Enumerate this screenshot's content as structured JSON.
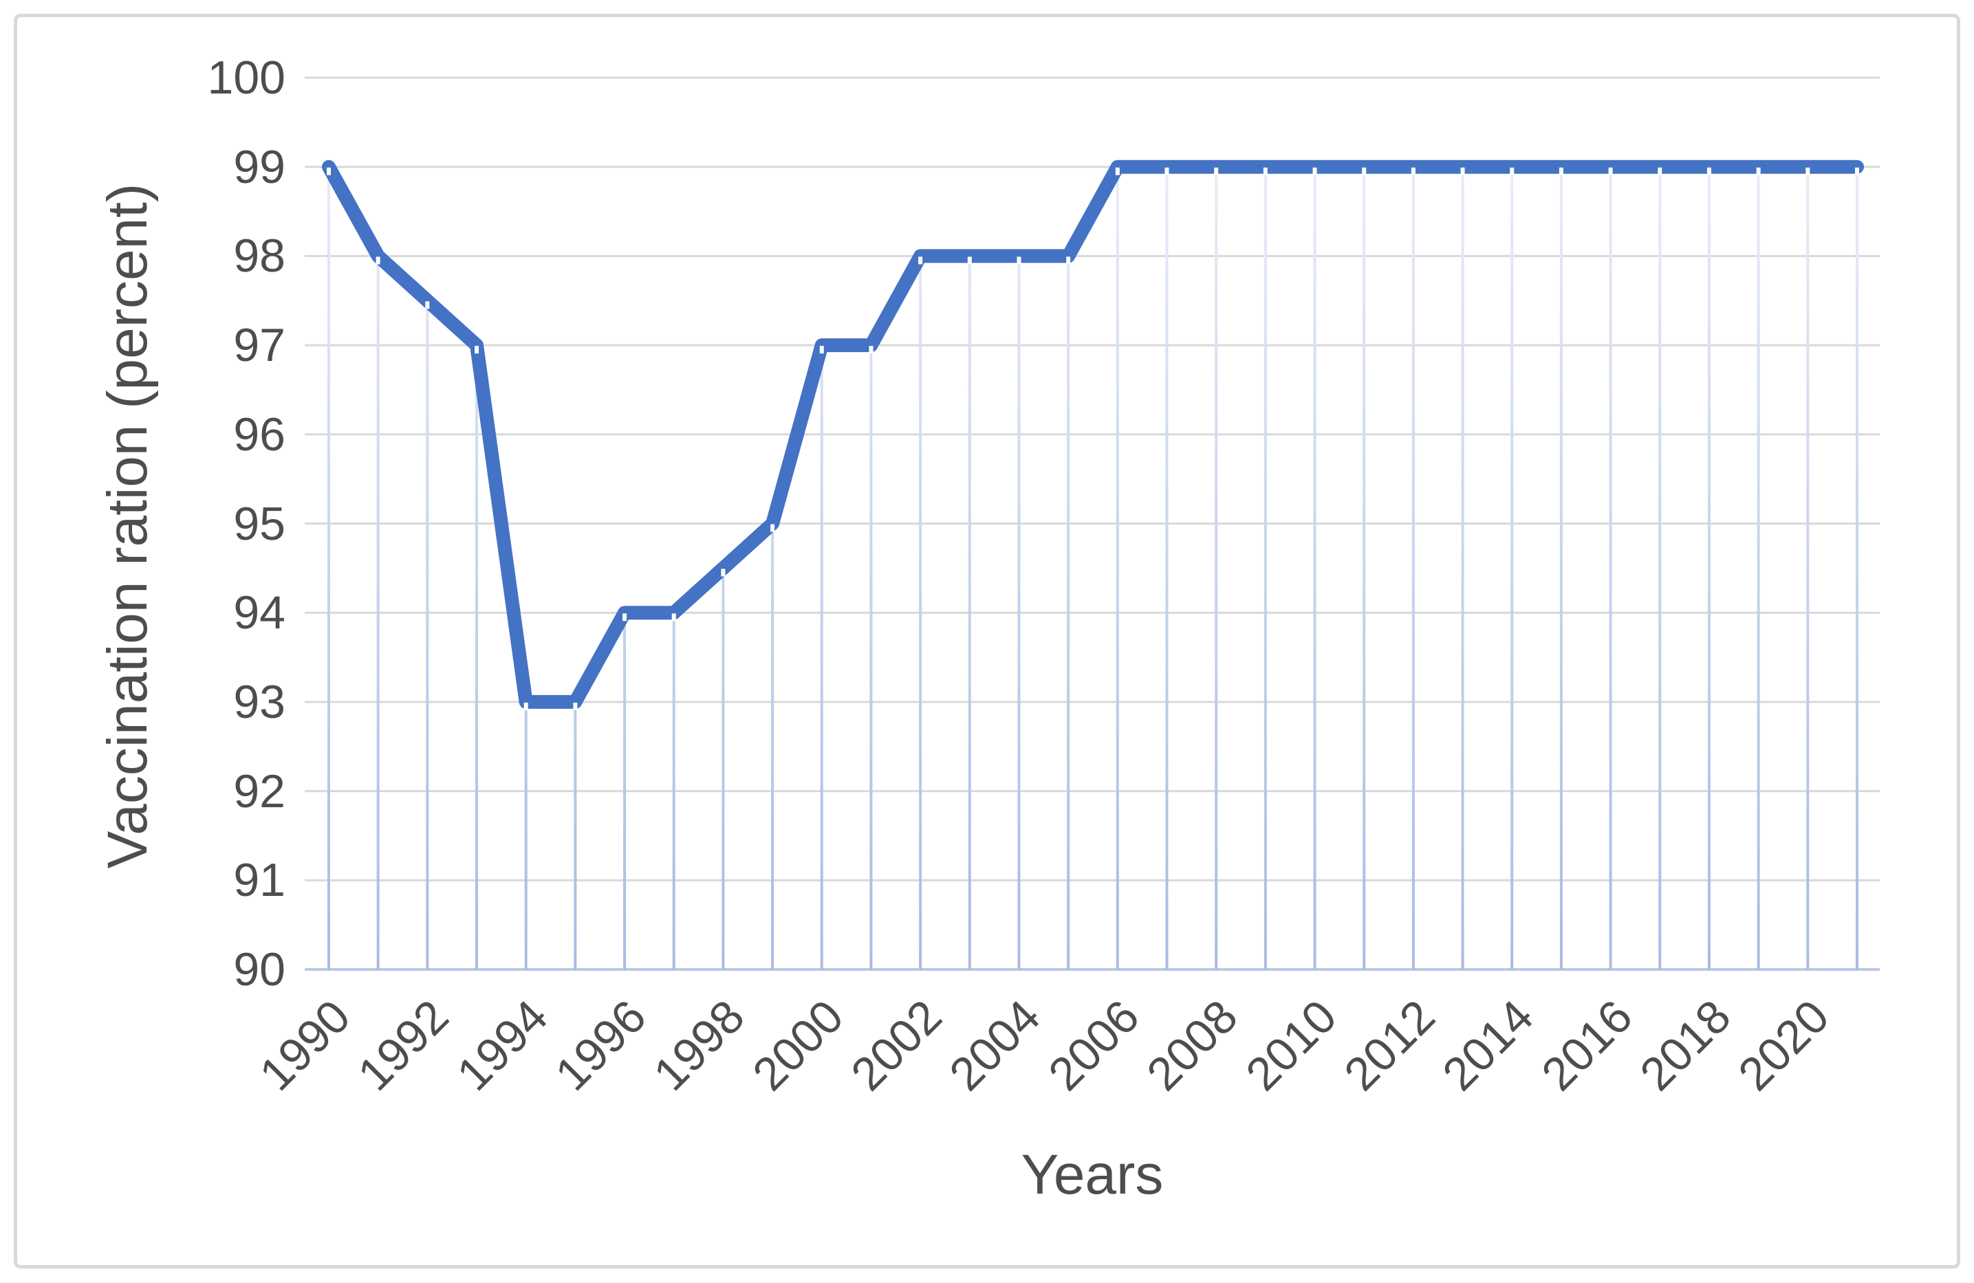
{
  "chart_data": {
    "type": "line",
    "title": "",
    "xlabel": "Years",
    "ylabel": "Vaccination ration (percent)",
    "x": [
      1990,
      1991,
      1992,
      1993,
      1994,
      1995,
      1996,
      1997,
      1998,
      1999,
      2000,
      2001,
      2002,
      2003,
      2004,
      2005,
      2006,
      2007,
      2008,
      2009,
      2010,
      2011,
      2012,
      2013,
      2014,
      2015,
      2016,
      2017,
      2018,
      2019,
      2020,
      2021
    ],
    "values": [
      99,
      98,
      97.5,
      97,
      93,
      93,
      94,
      94,
      94.5,
      95,
      97,
      97,
      98,
      98,
      98,
      98,
      99,
      99,
      99,
      99,
      99,
      99,
      99,
      99,
      99,
      99,
      99,
      99,
      99,
      99,
      99,
      99
    ],
    "ylim": [
      90,
      100
    ],
    "ytick_labels": [
      "100",
      "99",
      "98",
      "97",
      "96",
      "95",
      "94",
      "93",
      "92",
      "91",
      "90"
    ],
    "xtick_labels": [
      "1990",
      "1992",
      "1994",
      "1996",
      "1998",
      "2000",
      "2002",
      "2004",
      "2006",
      "2008",
      "2010",
      "2012",
      "2014",
      "2016",
      "2018",
      "2020"
    ],
    "grid": "horizontal-major",
    "drop_lines": true,
    "legend": "none",
    "colors": {
      "line": "#4472C4",
      "gridline": "#D9D9D9",
      "axis_line": "#B9C8E8",
      "drop_line_top": "#E7ECF7",
      "drop_line_bottom": "#A8BCE2",
      "label": "#4D4D4D",
      "frame_border": "#D9D9D9",
      "background": "#FFFFFF"
    }
  }
}
